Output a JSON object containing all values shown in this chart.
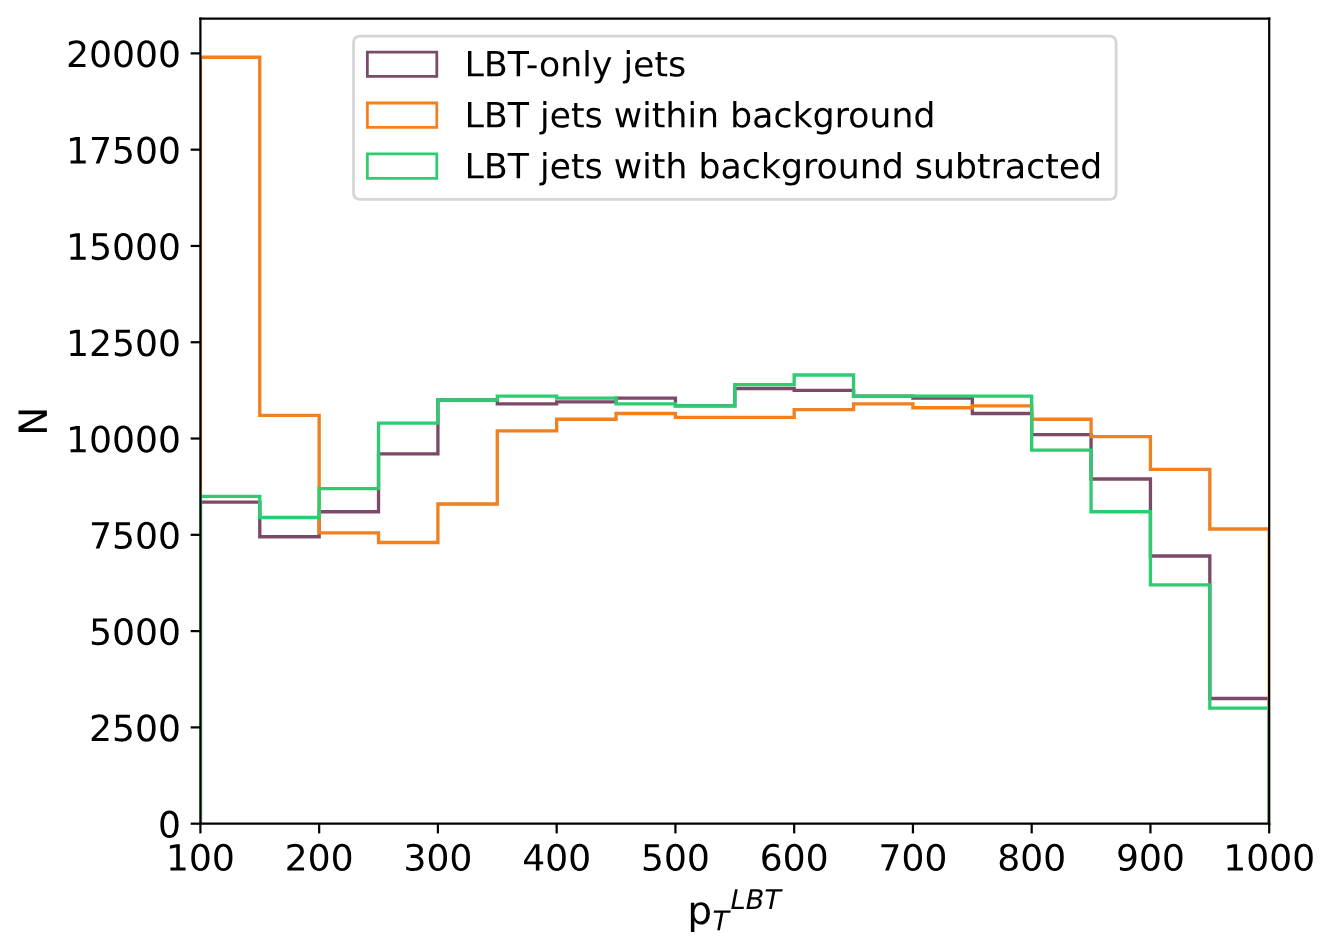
{
  "chart_data": {
    "type": "histogram",
    "xlabel": "p$_{T}$$^{LBT}$",
    "ylabel": "N",
    "bins": [
      100,
      150,
      200,
      250,
      300,
      350,
      400,
      450,
      500,
      550,
      600,
      650,
      700,
      750,
      800,
      850,
      900,
      950,
      1000
    ],
    "series": [
      {
        "name": "LBT-only jets",
        "color": "#7b4a68",
        "values": [
          8350,
          7450,
          8100,
          9600,
          11000,
          10900,
          10950,
          11050,
          10850,
          11300,
          11250,
          11100,
          11050,
          10650,
          10100,
          8950,
          6950,
          3250
        ]
      },
      {
        "name": "LBT jets within background",
        "color": "#f08020",
        "values": [
          19900,
          10600,
          7550,
          7300,
          8300,
          10200,
          10500,
          10650,
          10550,
          10550,
          10750,
          10900,
          10800,
          10850,
          10500,
          10050,
          9200,
          7650
        ]
      },
      {
        "name": "LBT jets with background subtracted",
        "color": "#2ecc71",
        "values": [
          8500,
          7950,
          8700,
          10400,
          11000,
          11100,
          11050,
          10900,
          10850,
          11400,
          11650,
          11100,
          11100,
          11100,
          9700,
          8100,
          6200,
          3000
        ]
      }
    ],
    "xlim": [
      100,
      1000
    ],
    "xticks": [
      100,
      200,
      300,
      400,
      500,
      600,
      700,
      800,
      900,
      1000
    ],
    "ylim": [
      0,
      20900
    ],
    "yticks": [
      0,
      2500,
      5000,
      7500,
      10000,
      12500,
      15000,
      17500,
      20000
    ],
    "grid": false,
    "legend": "top center"
  }
}
